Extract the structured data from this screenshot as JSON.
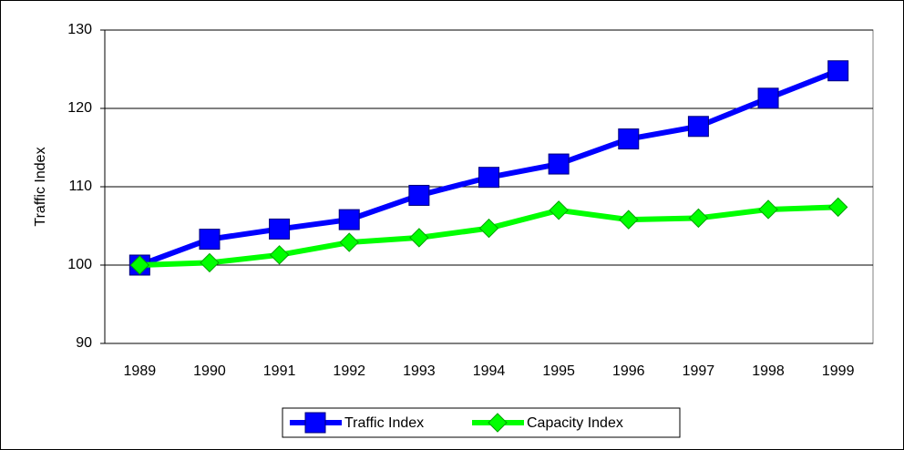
{
  "chart_data": {
    "type": "line",
    "y_label": "Traffic Index",
    "categories": [
      "1989",
      "1990",
      "1991",
      "1992",
      "1993",
      "1994",
      "1995",
      "1996",
      "1997",
      "1998",
      "1999"
    ],
    "series": [
      {
        "name": "Traffic Index",
        "color": "#0000ff",
        "marker": "square",
        "values": [
          100,
          103.3,
          104.6,
          105.8,
          108.9,
          111.2,
          112.9,
          116.1,
          117.7,
          121.3,
          124.8
        ]
      },
      {
        "name": "Capacity Index",
        "color": "#00ff00",
        "marker": "diamond",
        "values": [
          100,
          100.3,
          101.3,
          102.9,
          103.5,
          104.7,
          107.0,
          105.8,
          106.0,
          107.1,
          107.4
        ]
      }
    ],
    "ylim": [
      90,
      130
    ],
    "yticks": [
      90,
      100,
      110,
      120,
      130
    ],
    "grid": true,
    "legend": "bottom"
  }
}
